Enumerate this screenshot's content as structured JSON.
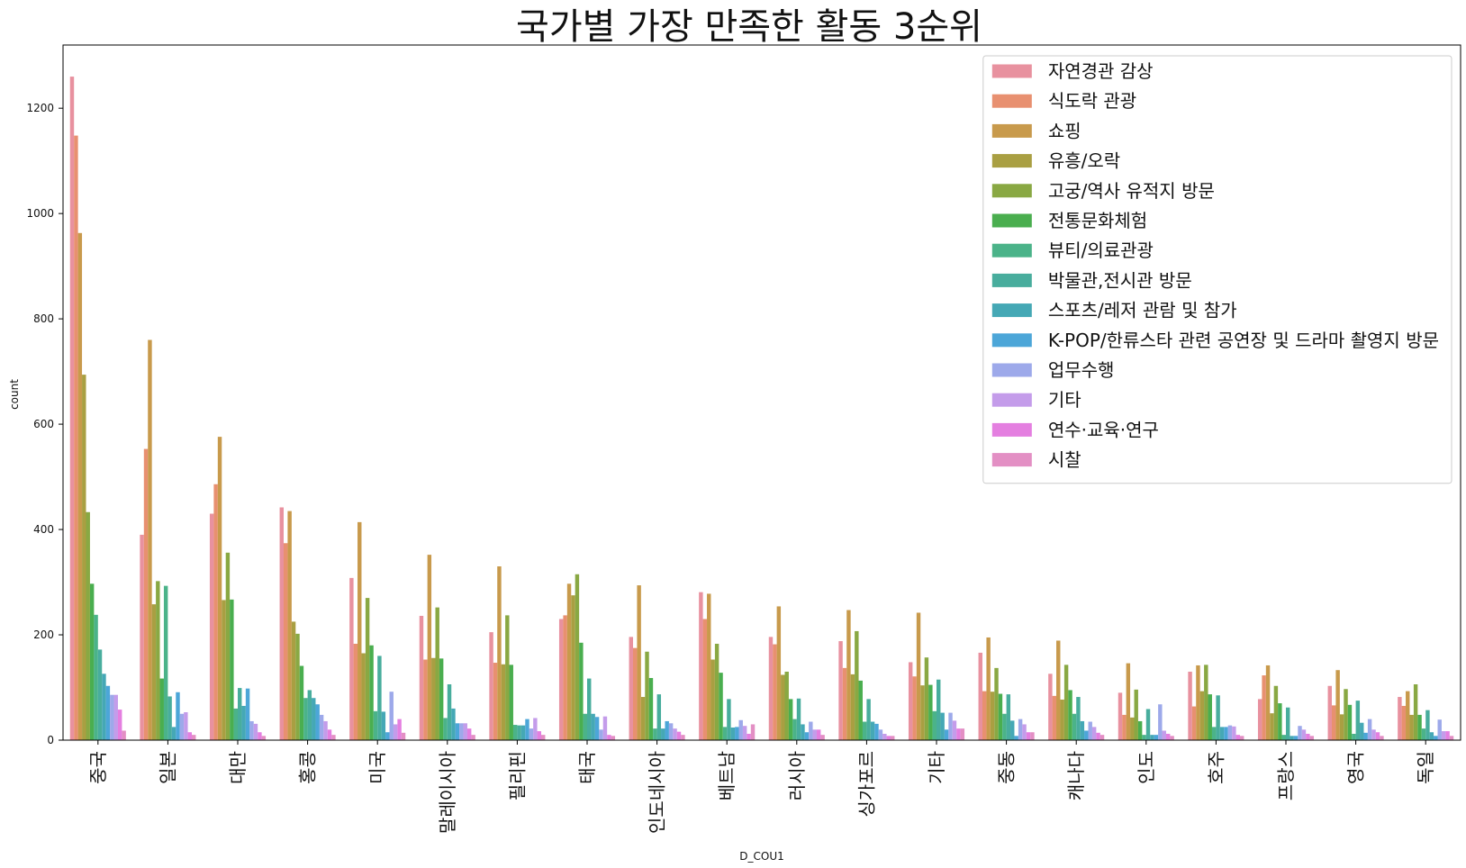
{
  "chart_data": {
    "type": "bar",
    "title": "국가별 가장 만족한 활동 3순위",
    "xlabel": "D_COU1",
    "ylabel": "count",
    "ylim": [
      0,
      1320
    ],
    "yticks": [
      0,
      200,
      400,
      600,
      800,
      1000,
      1200
    ],
    "grid": false,
    "legend_position": "top-right",
    "categories": [
      "중국",
      "일본",
      "대만",
      "홍콩",
      "미국",
      "말레이시아",
      "필리핀",
      "태국",
      "인도네시아",
      "베트남",
      "러시아",
      "싱가포르",
      "기타",
      "중동",
      "캐나다",
      "인도",
      "호주",
      "프랑스",
      "영국",
      "독일"
    ],
    "series": [
      {
        "name": "자연경관 감상",
        "color": "#e8919f",
        "values": [
          1260,
          390,
          430,
          442,
          308,
          236,
          205,
          230,
          196,
          281,
          196,
          188,
          148,
          166,
          126,
          90,
          130,
          78,
          103,
          82
        ]
      },
      {
        "name": "식도락 관광",
        "color": "#e89070",
        "values": [
          1148,
          553,
          486,
          374,
          183,
          153,
          147,
          237,
          175,
          230,
          182,
          137,
          121,
          93,
          84,
          48,
          64,
          123,
          66,
          65
        ]
      },
      {
        "name": "쇼핑",
        "color": "#c89a4c",
        "values": [
          963,
          760,
          576,
          435,
          414,
          352,
          330,
          297,
          294,
          278,
          254,
          247,
          242,
          195,
          189,
          146,
          142,
          142,
          133,
          93
        ]
      },
      {
        "name": "유흥/오락",
        "color": "#a99f42",
        "values": [
          694,
          258,
          266,
          225,
          165,
          156,
          144,
          275,
          82,
          153,
          124,
          125,
          104,
          92,
          77,
          43,
          93,
          51,
          49,
          48
        ]
      },
      {
        "name": "고궁/역사 유적지 방문",
        "color": "#89a843",
        "values": [
          433,
          302,
          356,
          202,
          270,
          252,
          237,
          315,
          168,
          183,
          130,
          207,
          157,
          137,
          143,
          96,
          143,
          103,
          97,
          106
        ]
      },
      {
        "name": "전통문화체험",
        "color": "#4aae4f",
        "values": [
          297,
          117,
          267,
          141,
          180,
          155,
          143,
          185,
          118,
          128,
          78,
          113,
          105,
          88,
          95,
          36,
          87,
          70,
          67,
          48
        ]
      },
      {
        "name": "뷰티/의료관광",
        "color": "#4bb389",
        "values": [
          238,
          293,
          60,
          80,
          55,
          42,
          29,
          50,
          22,
          25,
          40,
          35,
          55,
          50,
          50,
          10,
          25,
          10,
          12,
          22
        ]
      },
      {
        "name": "박물관,전시관 방문",
        "color": "#48ad9d",
        "values": [
          172,
          83,
          99,
          95,
          160,
          106,
          28,
          117,
          87,
          78,
          79,
          78,
          115,
          87,
          82,
          59,
          85,
          62,
          75,
          57
        ]
      },
      {
        "name": "스포츠/레저 관람 및 참가",
        "color": "#45a8b5",
        "values": [
          126,
          25,
          65,
          80,
          54,
          60,
          28,
          50,
          22,
          24,
          30,
          35,
          52,
          37,
          36,
          10,
          25,
          8,
          33,
          15
        ]
      },
      {
        "name": "K-POP/한류스타 관련 공연장 및 드라마 촬영지 방문",
        "color": "#4ca6d8",
        "values": [
          103,
          91,
          98,
          68,
          15,
          32,
          40,
          44,
          36,
          25,
          15,
          31,
          20,
          8,
          18,
          10,
          25,
          8,
          14,
          8
        ]
      },
      {
        "name": "업무수행",
        "color": "#9da9ea",
        "values": [
          86,
          50,
          36,
          48,
          92,
          32,
          22,
          20,
          32,
          38,
          35,
          20,
          52,
          40,
          35,
          68,
          28,
          27,
          40,
          39
        ]
      },
      {
        "name": "기타",
        "color": "#c49cea",
        "values": [
          86,
          53,
          31,
          36,
          30,
          32,
          42,
          45,
          22,
          27,
          20,
          12,
          37,
          30,
          25,
          18,
          26,
          20,
          20,
          17
        ]
      },
      {
        "name": "연수·교육·연구",
        "color": "#e47fe0",
        "values": [
          58,
          15,
          15,
          20,
          40,
          22,
          17,
          10,
          16,
          12,
          20,
          8,
          22,
          15,
          14,
          12,
          10,
          12,
          15,
          17
        ]
      },
      {
        "name": "시찰",
        "color": "#e38fc4",
        "values": [
          18,
          10,
          8,
          10,
          14,
          10,
          10,
          8,
          10,
          30,
          10,
          8,
          22,
          15,
          10,
          8,
          8,
          8,
          8,
          8
        ]
      }
    ]
  }
}
